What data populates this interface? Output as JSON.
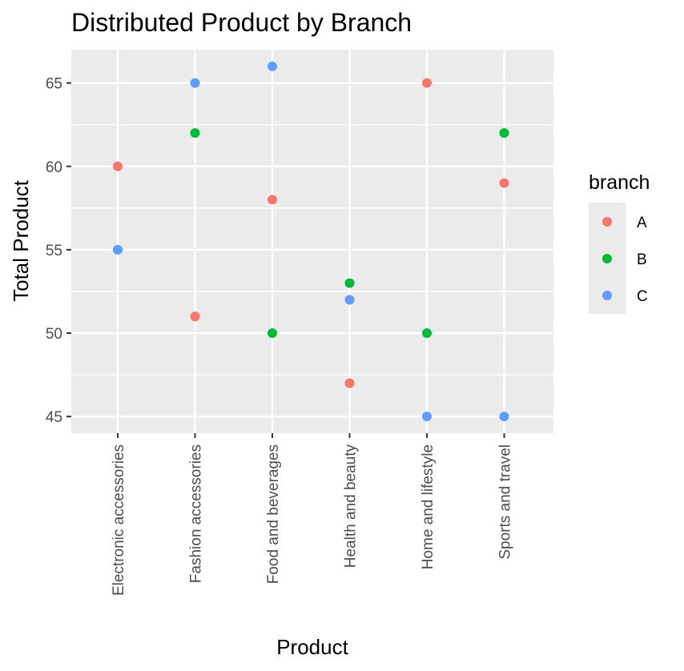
{
  "chart_data": {
    "type": "scatter",
    "title": "Distributed Product by Branch",
    "xlabel": "Product",
    "ylabel": "Total Product",
    "categories": [
      "Electronic accessories",
      "Fashion accessories",
      "Food and beverages",
      "Health and beauty",
      "Home and lifestyle",
      "Sports and travel"
    ],
    "ylim": [
      44,
      67
    ],
    "yticks": [
      45,
      50,
      55,
      60,
      65
    ],
    "grid": true,
    "legend": {
      "title": "branch",
      "position": "right"
    },
    "series": [
      {
        "name": "A",
        "color": "#F8766D",
        "values": [
          60,
          51,
          58,
          47,
          65,
          59
        ]
      },
      {
        "name": "B",
        "color": "#00BA38",
        "values": [
          55,
          62,
          50,
          53,
          50,
          62
        ]
      },
      {
        "name": "C",
        "color": "#619CFF",
        "values": [
          55,
          65,
          66,
          52,
          45,
          45
        ]
      }
    ]
  }
}
